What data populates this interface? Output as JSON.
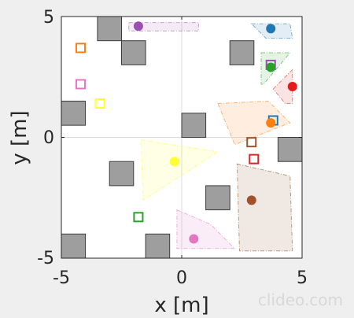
{
  "chart_data": {
    "type": "scatter",
    "xlabel": "x [m]",
    "ylabel": "y [m]",
    "xlim": [
      -5,
      5
    ],
    "ylim": [
      -5,
      5
    ],
    "xticks": [
      "-5",
      "0",
      "5"
    ],
    "yticks": [
      "-5",
      "0",
      "5"
    ],
    "grid": "zero-lines",
    "obstacle_size": 1.0,
    "obstacles": [
      {
        "x": -3.0,
        "y": 4.5
      },
      {
        "x": -2.0,
        "y": 3.5
      },
      {
        "x": 2.5,
        "y": 3.5
      },
      {
        "x": -4.5,
        "y": 1.0
      },
      {
        "x": 0.5,
        "y": 0.5
      },
      {
        "x": 4.5,
        "y": -0.5
      },
      {
        "x": -2.5,
        "y": -1.5
      },
      {
        "x": 1.5,
        "y": -2.5
      },
      {
        "x": -4.5,
        "y": -4.5
      },
      {
        "x": -1.0,
        "y": -4.5
      }
    ],
    "regions": [
      {
        "color": "#a55ab0",
        "points": [
          [
            -2.2,
            4.75
          ],
          [
            0.7,
            4.75
          ],
          [
            0.7,
            4.4
          ],
          [
            -2.2,
            4.4
          ]
        ]
      },
      {
        "color": "#1f77b4",
        "points": [
          [
            2.9,
            4.7
          ],
          [
            4.5,
            4.7
          ],
          [
            4.6,
            4.1
          ],
          [
            3.5,
            4.1
          ]
        ]
      },
      {
        "color": "#2ca02c",
        "points": [
          [
            3.3,
            3.5
          ],
          [
            4.5,
            3.5
          ],
          [
            3.4,
            2.2
          ],
          [
            3.3,
            2.2
          ]
        ]
      },
      {
        "color": "#d62728",
        "points": [
          [
            3.8,
            2.0
          ],
          [
            4.6,
            2.8
          ],
          [
            4.6,
            1.4
          ],
          [
            4.3,
            1.4
          ]
        ]
      },
      {
        "color": "#ff7f0e",
        "points": [
          [
            1.5,
            1.4
          ],
          [
            3.6,
            1.5
          ],
          [
            4.5,
            0.6
          ],
          [
            2.2,
            -0.3
          ]
        ]
      },
      {
        "color": "#ffff33",
        "points": [
          [
            -1.7,
            -0.1
          ],
          [
            1.5,
            -0.6
          ],
          [
            -1.6,
            -2.6
          ]
        ]
      },
      {
        "color": "#8c4a1f",
        "points": [
          [
            2.3,
            -1.1
          ],
          [
            4.5,
            -1.6
          ],
          [
            4.6,
            -4.7
          ],
          [
            2.4,
            -4.7
          ]
        ]
      },
      {
        "color": "#e377c2",
        "points": [
          [
            -0.2,
            -3.0
          ],
          [
            1.2,
            -3.6
          ],
          [
            2.2,
            -4.6
          ],
          [
            -0.2,
            -4.6
          ]
        ]
      }
    ],
    "robots": [
      {
        "color": "#9b4fb2",
        "x": -1.8,
        "y": 4.6
      },
      {
        "color": "#1f77b4",
        "x": 3.7,
        "y": 4.5
      },
      {
        "color": "#2ca02c",
        "x": 3.7,
        "y": 2.9
      },
      {
        "color": "#e41a1c",
        "x": 4.6,
        "y": 2.1
      },
      {
        "color": "#ff7f0e",
        "x": 3.7,
        "y": 0.6
      },
      {
        "color": "#ffff33",
        "x": -0.3,
        "y": -1.0
      },
      {
        "color": "#a0522d",
        "x": 2.9,
        "y": -2.6
      },
      {
        "color": "#e377c2",
        "x": 0.5,
        "y": -4.2
      }
    ],
    "goals": [
      {
        "color": "#ff7f0e",
        "x": -4.2,
        "y": 3.7
      },
      {
        "color": "#e377c2",
        "x": -4.2,
        "y": 2.2
      },
      {
        "color": "#ffff33",
        "x": -3.4,
        "y": 1.4
      },
      {
        "color": "#9b4fb2",
        "x": 3.7,
        "y": 3.0
      },
      {
        "color": "#1f77b4",
        "x": 3.8,
        "y": 0.7
      },
      {
        "color": "#a0522d",
        "x": 2.9,
        "y": -0.2
      },
      {
        "color": "#d62728",
        "x": 3.0,
        "y": -0.9
      },
      {
        "color": "#2ca02c",
        "x": -1.8,
        "y": -3.3
      }
    ]
  },
  "watermark": "clideo.com",
  "colors": {
    "axis": "#262626",
    "background": "#efefef",
    "plot_bg": "#ffffff",
    "obstacle_fill": "#9e9e9e"
  }
}
